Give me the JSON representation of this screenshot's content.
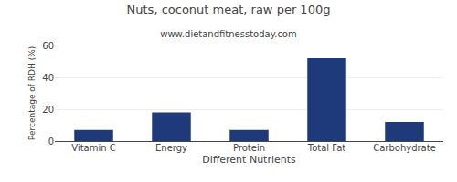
{
  "chart_data": {
    "type": "bar",
    "title": "Nuts, coconut meat, raw per 100g",
    "subtitle": "www.dietandfitnesstoday.com",
    "xlabel": "Different Nutrients",
    "ylabel": "Percentage of RDH (%)",
    "categories": [
      "Vitamin C",
      "Energy",
      "Protein",
      "Total Fat",
      "Carbohydrate"
    ],
    "values": [
      7,
      18,
      7,
      52,
      12
    ],
    "color": "#1F3A7A",
    "ylim": [
      0,
      60
    ],
    "yticks": [
      0,
      20,
      40,
      60
    ],
    "grid": true
  }
}
